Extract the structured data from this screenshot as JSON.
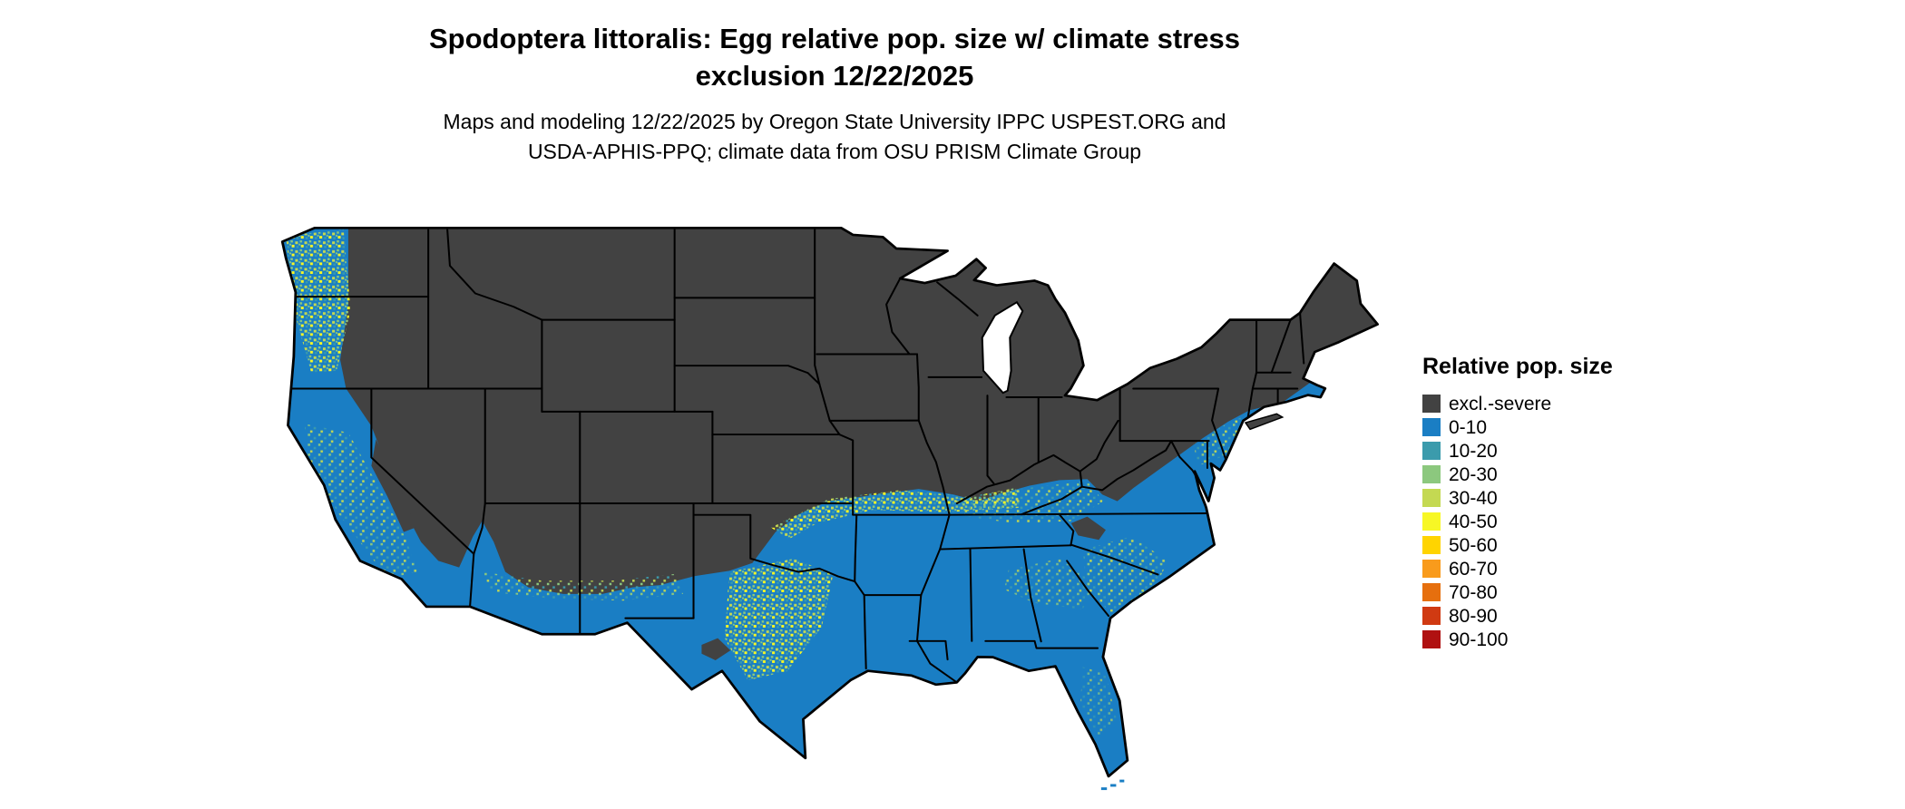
{
  "header": {
    "title_line1": "Spodoptera littoralis: Egg relative pop. size w/ climate stress",
    "title_line2": "exclusion 12/22/2025",
    "subtitle_line1": "Maps and modeling 12/22/2025 by Oregon State University IPPC USPEST.ORG and",
    "subtitle_line2": "USDA-APHIS-PPQ; climate data from OSU PRISM Climate Group"
  },
  "legend": {
    "title": "Relative pop. size",
    "items": [
      {
        "label": "excl.-severe",
        "color": "#424242"
      },
      {
        "label": "0-10",
        "color": "#1a7ec4"
      },
      {
        "label": "10-20",
        "color": "#3b9bac"
      },
      {
        "label": "20-30",
        "color": "#8cc87e"
      },
      {
        "label": "30-40",
        "color": "#c4d952"
      },
      {
        "label": "40-50",
        "color": "#f7f725"
      },
      {
        "label": "50-60",
        "color": "#ffd400"
      },
      {
        "label": "60-70",
        "color": "#f99b1c"
      },
      {
        "label": "70-80",
        "color": "#e66f0e"
      },
      {
        "label": "80-90",
        "color": "#d03a12"
      },
      {
        "label": "90-100",
        "color": "#b01111"
      }
    ]
  },
  "palette": {
    "excl": "#424242",
    "b0": "#1a7ec4",
    "t10": "#3b9bac",
    "g20": "#8cc87e",
    "yg30": "#c4d952",
    "y40": "#f7f725",
    "border": "#000000",
    "water": "#ffffff"
  }
}
